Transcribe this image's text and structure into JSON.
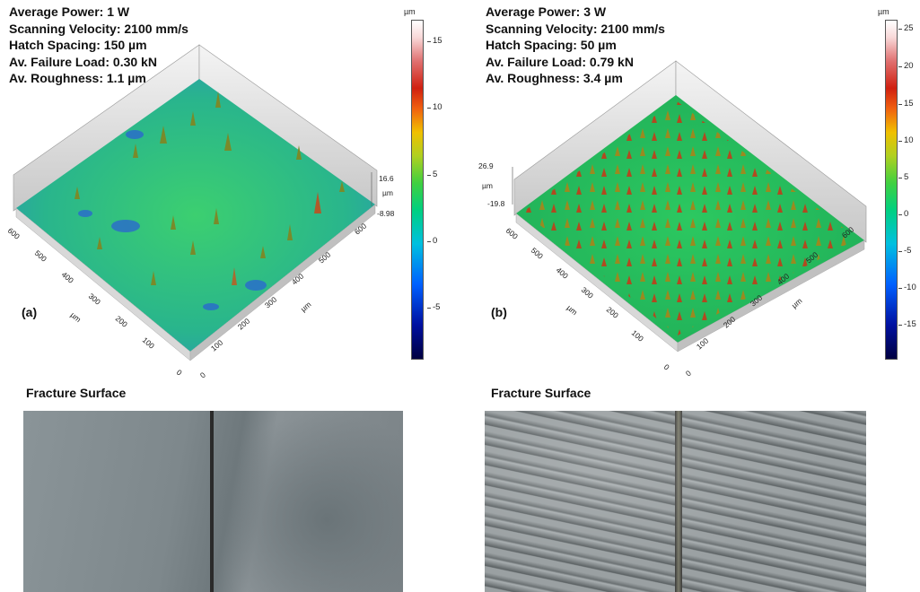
{
  "panels": [
    {
      "letter": "(a)",
      "params": [
        "Average Power: 1 W",
        "Scanning Velocity: 2100 mm/s",
        "Hatch Spacing: 150 µm",
        "Av. Failure Load: 0.30 kN",
        "Av. Roughness: 1.1 µm"
      ],
      "height_range": [
        "16.6",
        "µm",
        "-8.98"
      ],
      "axis_unit": "µm",
      "axis_ticks_left": [
        "600",
        "500",
        "400",
        "300",
        "200",
        "100",
        "0"
      ],
      "axis_ticks_right": [
        "600",
        "500",
        "400",
        "300",
        "200",
        "100",
        "0"
      ],
      "colorbar_unit": "µm",
      "colorbar_ticks": [
        "15",
        "10",
        "5",
        "0",
        "-5"
      ],
      "section_title": "Fracture Surface",
      "surface_color": "#2fbf7a",
      "fracture_color": "#7f8a8e"
    },
    {
      "letter": "(b)",
      "params": [
        "Average Power: 3 W",
        "Scanning Velocity: 2100 mm/s",
        "Hatch Spacing: 50 µm",
        "Av. Failure Load: 0.79 kN",
        "Av. Roughness: 3.4 µm"
      ],
      "height_range": [
        "26.9",
        "µm",
        "-19.8"
      ],
      "axis_unit": "µm",
      "axis_ticks_left": [
        "600",
        "500",
        "400",
        "300",
        "200",
        "100",
        "0"
      ],
      "axis_ticks_right": [
        "600",
        "500",
        "400",
        "300",
        "200",
        "100",
        "0"
      ],
      "colorbar_unit": "µm",
      "colorbar_ticks": [
        "25",
        "20",
        "15",
        "10",
        "5",
        "0",
        "-5",
        "-10",
        "-15"
      ],
      "section_title": "Fracture Surface",
      "surface_color": "#28c060",
      "fracture_color": "#8c9294"
    }
  ]
}
